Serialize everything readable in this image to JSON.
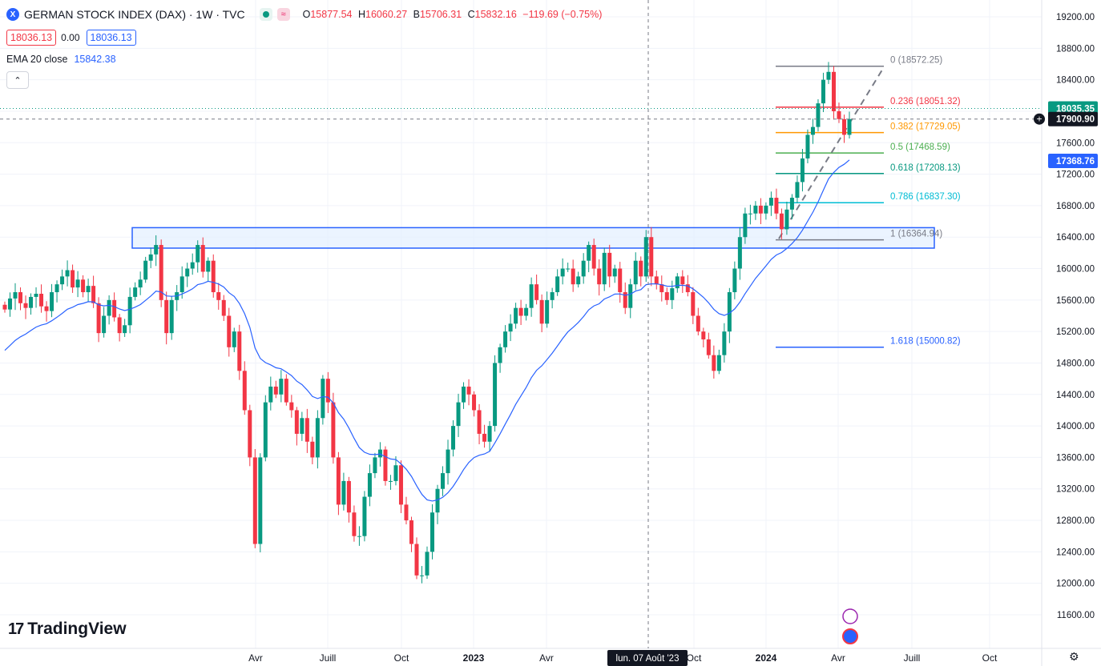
{
  "header": {
    "symbol_badge": "X",
    "title": "GERMAN STOCK INDEX (DAX) · 1W · TVC",
    "ohlc": {
      "o_label": "O",
      "o_value": "15877.54",
      "h_label": "H",
      "h_value": "16060.27",
      "l_label": "B",
      "l_value": "15706.31",
      "c_label": "C",
      "c_value": "15832.16",
      "change": "−119.69 (−0.75%)"
    },
    "bid": "18036.13",
    "spread": "0.00",
    "ask": "18036.13",
    "ema_label": "EMA 20 close",
    "ema_value": "15842.38",
    "collapse_icon": "chevron-up-icon"
  },
  "logo": {
    "text": "TradingView",
    "icon": "tradingview-logo-icon"
  },
  "colors": {
    "up": "#089981",
    "down": "#f23645",
    "ema": "#2962ff",
    "zone_fill": "#e3f0ff",
    "zone_border": "#2962ff",
    "grid": "#f0f3fa"
  },
  "chart_data": {
    "type": "candlestick",
    "title": "GERMAN STOCK INDEX (DAX) · 1W · TVC",
    "xlabel": "",
    "ylabel": "",
    "ylim": [
      11300,
      19400
    ],
    "y_ticks": [
      "19200.00",
      "18800.00",
      "18400.00",
      "18000.00",
      "17600.00",
      "17200.00",
      "16800.00",
      "16400.00",
      "16000.00",
      "15600.00",
      "15200.00",
      "14800.00",
      "14400.00",
      "14000.00",
      "13600.00",
      "13200.00",
      "12800.00",
      "12400.00",
      "12000.00",
      "11600.00"
    ],
    "x_ticks": [
      "Avr",
      "Juill",
      "Oct",
      "2023",
      "Avr",
      "Oct",
      "2024",
      "Avr",
      "Juill",
      "Oct"
    ],
    "crosshair_x_label": "lun. 07 Août '23",
    "price_labels": [
      {
        "label": "18035.35",
        "value": 18035.35,
        "color": "#089981"
      },
      {
        "label": "17900.90",
        "value": 17900.9,
        "color": "#131722"
      },
      {
        "label": "17368.76",
        "value": 17368.76,
        "color": "#2962ff"
      }
    ],
    "fibonacci": [
      {
        "level": "0",
        "text": "0 (18572.25)",
        "value": 18572.25,
        "color": "#787b86"
      },
      {
        "level": "0.236",
        "text": "0.236 (18051.32)",
        "value": 18051.32,
        "color": "#f23645"
      },
      {
        "level": "0.382",
        "text": "0.382 (17729.05)",
        "value": 17729.05,
        "color": "#ff9800"
      },
      {
        "level": "0.5",
        "text": "0.5 (17468.59)",
        "value": 17468.59,
        "color": "#4caf50"
      },
      {
        "level": "0.618",
        "text": "0.618 (17208.13)",
        "value": 17208.13,
        "color": "#089981"
      },
      {
        "level": "0.786",
        "text": "0.786 (16837.30)",
        "value": 16837.3,
        "color": "#00bcd4"
      },
      {
        "level": "1",
        "text": "1 (16364.94)",
        "value": 16364.94,
        "color": "#787b86"
      },
      {
        "level": "1.618",
        "text": "1.618 (15000.82)",
        "value": 15000.82,
        "color": "#2962ff"
      }
    ],
    "support_zone": {
      "low": 16260,
      "high": 16520
    },
    "trend_line": {
      "from": 16380,
      "to": 18560
    },
    "series": [
      {
        "name": "DAX",
        "ohlc_path": [
          15480,
          15620,
          15700,
          15560,
          15500,
          15640,
          15680,
          15520,
          15460,
          15700,
          15800,
          15900,
          15980,
          15760,
          15860,
          15700,
          15780,
          15560,
          15180,
          15400,
          15600,
          15380,
          15180,
          15280,
          15640,
          15760,
          15860,
          16100,
          16180,
          16300,
          15600,
          15180,
          15600,
          15700,
          15900,
          16000,
          16080,
          16300,
          15960,
          16100,
          15700,
          15600,
          15400,
          15000,
          15200,
          14700,
          14200,
          13600,
          12500,
          13600,
          14300,
          14500,
          14400,
          14600,
          14300,
          14200,
          13900,
          14100,
          13800,
          13600,
          14100,
          14600,
          14300,
          13600,
          13000,
          13300,
          12900,
          12600,
          12600,
          13100,
          13400,
          13600,
          13700,
          13300,
          13300,
          13500,
          13000,
          12800,
          12500,
          12100,
          12100,
          12400,
          12900,
          13200,
          13400,
          13700,
          14000,
          14300,
          14500,
          14400,
          14200,
          13900,
          13800,
          14000,
          14800,
          15000,
          15200,
          15300,
          15500,
          15400,
          15500,
          15800,
          15600,
          15300,
          15600,
          15700,
          15900,
          16000,
          16000,
          15800,
          15900,
          16100,
          16300,
          16000,
          15800,
          16200,
          15900,
          16000,
          15700,
          15500,
          15800,
          16100,
          15900,
          16400,
          15900,
          15800,
          15700,
          15600,
          15750,
          15900,
          15800,
          15700,
          15400,
          15200,
          15100,
          14900,
          14700,
          14900,
          15200,
          15700,
          16000,
          16400,
          16700,
          16700,
          16800,
          16700,
          16800,
          16900,
          16700,
          16500,
          16750,
          16900,
          17100,
          17400,
          17700,
          17800,
          18100,
          18400,
          18500,
          18000,
          17900,
          17700,
          17900
        ]
      },
      {
        "name": "EMA 20 close",
        "from": 14960,
        "to": 17370
      }
    ]
  }
}
